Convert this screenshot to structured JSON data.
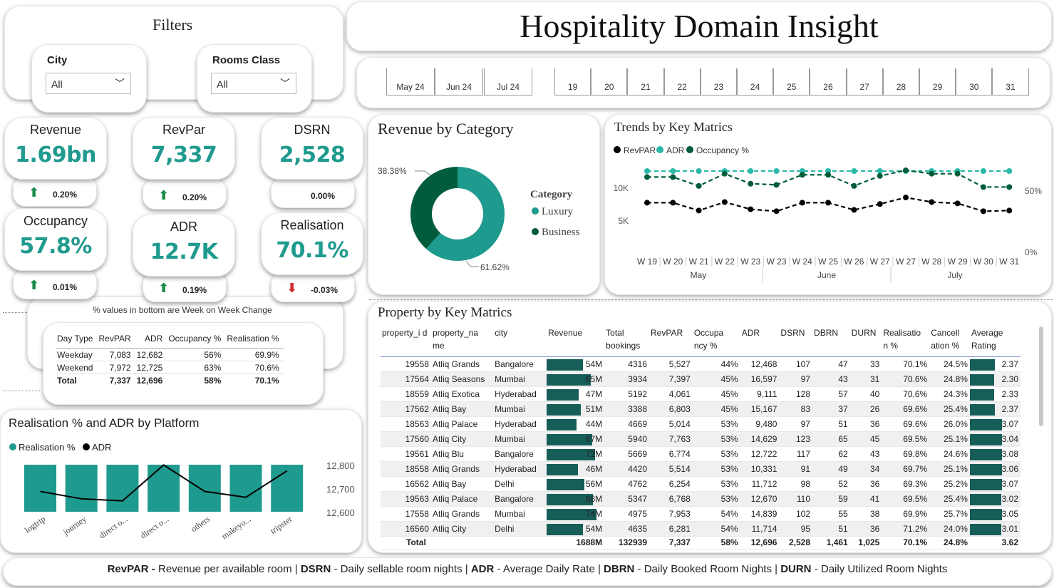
{
  "title": "Hospitality Domain Insight",
  "filters": {
    "title": "Filters",
    "city": {
      "label": "City",
      "value": "All"
    },
    "room_class": {
      "label": "Rooms Class",
      "value": "All"
    }
  },
  "months": [
    "May 24",
    "Jun 24",
    "Jul 24"
  ],
  "weeks": [
    "19",
    "20",
    "21",
    "22",
    "23",
    "24",
    "25",
    "26",
    "27",
    "28",
    "29",
    "30",
    "31"
  ],
  "kpis": [
    {
      "name": "Revenue",
      "value": "1.69bn",
      "change": "0.20%",
      "dir": "up"
    },
    {
      "name": "RevPar",
      "value": "7,337",
      "change": "0.20%",
      "dir": "up"
    },
    {
      "name": "DSRN",
      "value": "2,528",
      "change": "0.00%",
      "dir": "none"
    },
    {
      "name": "Occupancy",
      "value": "57.8%",
      "change": "0.01%",
      "dir": "up"
    },
    {
      "name": "ADR",
      "value": "12.7K",
      "change": "0.19%",
      "dir": "up"
    },
    {
      "name": "Realisation",
      "value": "70.1%",
      "change": "-0.03%",
      "dir": "down"
    }
  ],
  "colors": {
    "teal": "#1f9a8e",
    "dark_green": "#005c3a",
    "bar_dark": "#175e59",
    "up": "#1b8a4a",
    "down": "#d22c2c"
  },
  "daytype": {
    "note": "% values in bottom are Week on Week Change",
    "headers": [
      "Day Type",
      "RevPAR",
      "ADR",
      "Occupancy %",
      "Realisation %"
    ],
    "rows": [
      [
        "Weekday",
        "7,083",
        "12,682",
        "56%",
        "69.9%"
      ],
      [
        "Weekend",
        "7,972",
        "12,725",
        "63%",
        "70.6%"
      ]
    ],
    "total": [
      "Total",
      "7,337",
      "12,696",
      "58%",
      "70.1%"
    ]
  },
  "platform_chart": {
    "title": "Realisation % and ADR by Platform",
    "legend": [
      "Realisation %",
      "ADR"
    ],
    "y_ticks": [
      "12,800",
      "12,700",
      "12,600"
    ]
  },
  "category_chart": {
    "title": "Revenue by Category",
    "legend_title": "Category",
    "slices": [
      {
        "name": "Luxury",
        "pct_label": "61.62%"
      },
      {
        "name": "Business",
        "pct_label": "38.38%"
      }
    ]
  },
  "trends_chart": {
    "title": "Trends by Key Matrics",
    "legend": [
      "RevPAR",
      "ADR",
      "Occupancy %"
    ],
    "y_left": [
      "10K",
      "5K"
    ],
    "y_right": [
      "50%",
      "0%"
    ],
    "x_weeks": [
      "W 19",
      "W 20",
      "W 21",
      "W 22",
      "W 23",
      "W 23",
      "W 24",
      "W 25",
      "W 26",
      "W 27",
      "W 27",
      "W 28",
      "W 29",
      "W 30",
      "W 31"
    ],
    "x_months": [
      "May",
      "June",
      "July"
    ]
  },
  "chart_data": [
    {
      "type": "pie",
      "title": "Revenue by Category",
      "categories": [
        "Luxury",
        "Business"
      ],
      "values": [
        61.62,
        38.38
      ]
    },
    {
      "type": "bar",
      "title": "Realisation % and ADR by Platform",
      "categories": [
        "logtrip",
        "journey",
        "direct o...",
        "direct o...",
        "others",
        "makeyo...",
        "tripster"
      ],
      "series": [
        {
          "name": "Realisation %",
          "values": [
            70.2,
            70.1,
            70.1,
            70.0,
            70.0,
            70.1,
            70.1
          ]
        },
        {
          "name": "ADR",
          "values": [
            12700,
            12675,
            12668,
            12790,
            12700,
            12680,
            12770
          ]
        }
      ],
      "ylim": [
        12580,
        12820
      ]
    },
    {
      "type": "line",
      "title": "Trends by Key Matrics",
      "x": [
        "W 19",
        "W 20",
        "W 21",
        "W 22",
        "W 23",
        "W 23",
        "W 24",
        "W 25",
        "W 26",
        "W 27",
        "W 27",
        "W 28",
        "W 29",
        "W 30",
        "W 31"
      ],
      "series": [
        {
          "name": "RevPAR",
          "values": [
            7800,
            7800,
            6600,
            7900,
            6800,
            6500,
            7800,
            7800,
            6700,
            7600,
            8600,
            7900,
            7700,
            6500,
            6600
          ]
        },
        {
          "name": "ADR",
          "values": [
            12700,
            12700,
            12700,
            12700,
            12700,
            12700,
            12700,
            12700,
            12700,
            12700,
            12700,
            12700,
            12700,
            12700,
            12700
          ]
        },
        {
          "name": "Occupancy %",
          "values": [
            60,
            60,
            52,
            63,
            54,
            53,
            62,
            62,
            52,
            61,
            66,
            63,
            63,
            51,
            51
          ]
        }
      ]
    }
  ],
  "property_table": {
    "title": "Property by Key Matrics",
    "headers": [
      "property_i d",
      "property_na me",
      "city",
      "Revenue",
      "Total bookings",
      "RevPAR",
      "Occupa ncy %",
      "ADR",
      "DSRN",
      "DBRN",
      "DURN",
      "Realisatio n %",
      "Cancell ation %",
      "Average Rating"
    ],
    "rows": [
      {
        "id": "19558",
        "name": "Atliq Grands",
        "city": "Bangalore",
        "revenue": "54M",
        "rev_val": 54,
        "bookings": "4316",
        "revpar": "5,527",
        "occ": "44%",
        "adr": "12,468",
        "dsrn": "107",
        "dbrn": "47",
        "durn": "33",
        "real": "70.1%",
        "canc": "24.5%",
        "rating": "2.37",
        "rating_val": 2.37
      },
      {
        "id": "17564",
        "name": "Atliq Seasons",
        "city": "Mumbai",
        "revenue": "65M",
        "rev_val": 65,
        "bookings": "3934",
        "revpar": "7,397",
        "occ": "45%",
        "adr": "16,597",
        "dsrn": "97",
        "dbrn": "43",
        "durn": "31",
        "real": "70.6%",
        "canc": "24.8%",
        "rating": "2.30",
        "rating_val": 2.3
      },
      {
        "id": "18559",
        "name": "Atliq Exotica",
        "city": "Hyderabad",
        "revenue": "47M",
        "rev_val": 47,
        "bookings": "5192",
        "revpar": "4,061",
        "occ": "45%",
        "adr": "9,111",
        "dsrn": "128",
        "dbrn": "57",
        "durn": "40",
        "real": "70.6%",
        "canc": "24.3%",
        "rating": "2.33",
        "rating_val": 2.33
      },
      {
        "id": "17562",
        "name": "Atliq Bay",
        "city": "Mumbai",
        "revenue": "51M",
        "rev_val": 51,
        "bookings": "3388",
        "revpar": "6,803",
        "occ": "45%",
        "adr": "15,167",
        "dsrn": "83",
        "dbrn": "37",
        "durn": "26",
        "real": "69.6%",
        "canc": "25.4%",
        "rating": "2.37",
        "rating_val": 2.37
      },
      {
        "id": "18563",
        "name": "Atliq Palace",
        "city": "Hyderabad",
        "revenue": "44M",
        "rev_val": 44,
        "bookings": "4669",
        "revpar": "5,014",
        "occ": "53%",
        "adr": "9,480",
        "dsrn": "97",
        "dbrn": "51",
        "durn": "36",
        "real": "69.6%",
        "canc": "26.0%",
        "rating": "3.07",
        "rating_val": 3.07
      },
      {
        "id": "17560",
        "name": "Atliq City",
        "city": "Mumbai",
        "revenue": "67M",
        "rev_val": 67,
        "bookings": "5940",
        "revpar": "7,763",
        "occ": "53%",
        "adr": "14,629",
        "dsrn": "123",
        "dbrn": "65",
        "durn": "45",
        "real": "69.5%",
        "canc": "25.1%",
        "rating": "3.04",
        "rating_val": 3.04
      },
      {
        "id": "19561",
        "name": "Atliq Blu",
        "city": "Bangalore",
        "revenue": "72M",
        "rev_val": 72,
        "bookings": "5669",
        "revpar": "6,774",
        "occ": "53%",
        "adr": "12,722",
        "dsrn": "117",
        "dbrn": "62",
        "durn": "43",
        "real": "69.8%",
        "canc": "24.6%",
        "rating": "3.08",
        "rating_val": 3.08
      },
      {
        "id": "18558",
        "name": "Atliq Grands",
        "city": "Hyderabad",
        "revenue": "46M",
        "rev_val": 46,
        "bookings": "4420",
        "revpar": "5,514",
        "occ": "53%",
        "adr": "10,331",
        "dsrn": "91",
        "dbrn": "49",
        "durn": "34",
        "real": "69.7%",
        "canc": "25.1%",
        "rating": "3.06",
        "rating_val": 3.06
      },
      {
        "id": "16562",
        "name": "Atliq Bay",
        "city": "Delhi",
        "revenue": "56M",
        "rev_val": 56,
        "bookings": "4762",
        "revpar": "6,254",
        "occ": "53%",
        "adr": "11,712",
        "dsrn": "98",
        "dbrn": "52",
        "durn": "36",
        "real": "69.3%",
        "canc": "25.2%",
        "rating": "3.07",
        "rating_val": 3.07
      },
      {
        "id": "19563",
        "name": "Atliq Palace",
        "city": "Bangalore",
        "revenue": "68M",
        "rev_val": 68,
        "bookings": "5347",
        "revpar": "6,768",
        "occ": "53%",
        "adr": "12,670",
        "dsrn": "110",
        "dbrn": "59",
        "durn": "41",
        "real": "69.5%",
        "canc": "25.4%",
        "rating": "3.02",
        "rating_val": 3.02
      },
      {
        "id": "17558",
        "name": "Atliq Grands",
        "city": "Mumbai",
        "revenue": "74M",
        "rev_val": 74,
        "bookings": "4975",
        "revpar": "7,953",
        "occ": "54%",
        "adr": "14,839",
        "dsrn": "102",
        "dbrn": "55",
        "durn": "38",
        "real": "69.9%",
        "canc": "25.7%",
        "rating": "3.05",
        "rating_val": 3.05
      },
      {
        "id": "16560",
        "name": "Atliq City",
        "city": "Delhi",
        "revenue": "54M",
        "rev_val": 54,
        "bookings": "4635",
        "revpar": "6,281",
        "occ": "54%",
        "adr": "11,714",
        "dsrn": "95",
        "dbrn": "51",
        "durn": "36",
        "real": "71.2%",
        "canc": "24.0%",
        "rating": "3.01",
        "rating_val": 3.01
      }
    ],
    "total": {
      "label": "Total",
      "revenue": "1688M",
      "bookings": "132939",
      "revpar": "7,337",
      "occ": "58%",
      "adr": "12,696",
      "dsrn": "2,528",
      "dbrn": "1,461",
      "durn": "1,025",
      "real": "70.1%",
      "canc": "24.8%",
      "rating": "3.62"
    }
  },
  "footer": {
    "items": [
      {
        "abbr": "RevPAR -",
        "desc": " Revenue per available room | "
      },
      {
        "abbr": "DSRN",
        "desc": " - Daily sellable room nights | "
      },
      {
        "abbr": "ADR",
        "desc": " - Average Daily Rate | "
      },
      {
        "abbr": "DBRN",
        "desc": " - Daily Booked Room Nights | "
      },
      {
        "abbr": "DURN",
        "desc": " - Daily Utilized Room Nights"
      }
    ]
  }
}
